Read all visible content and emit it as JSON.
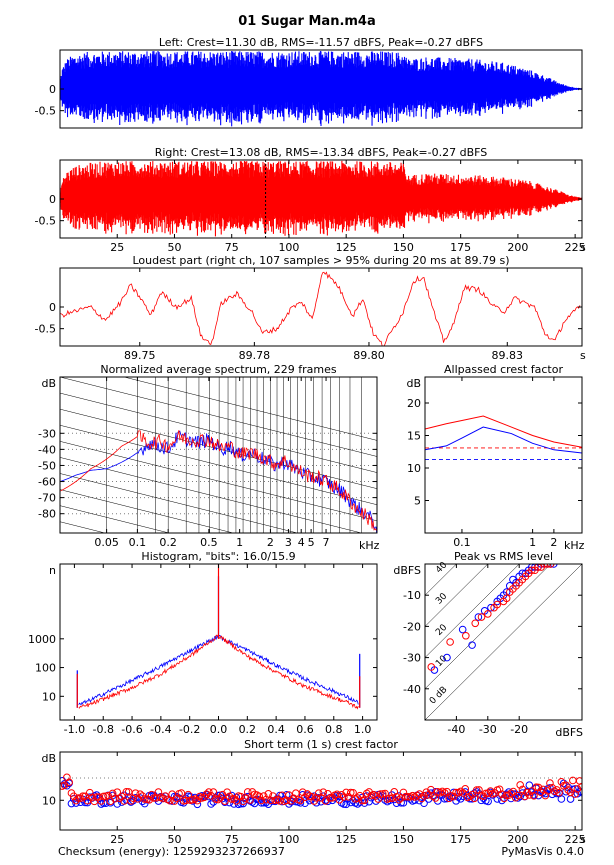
{
  "figure": {
    "title": "01 Sugar Man.m4a",
    "footer_left": "Checksum (energy): 1259293237266937",
    "footer_right": "PyMasVis 0.4.0"
  },
  "colors": {
    "left": "#0000ff",
    "right": "#ff0000",
    "axis": "#000000",
    "grid": "#7f7f7f"
  },
  "chart_data": [
    {
      "id": "left_wave",
      "type": "line",
      "title": "Left: Crest=11.30 dB, RMS=-11.57 dBFS, Peak=-0.27 dBFS",
      "xlim": [
        0,
        228
      ],
      "ylim": [
        -0.9,
        0.9
      ],
      "yticks": [
        "0",
        "-0.5"
      ],
      "ytick_values": [
        0,
        -0.5
      ],
      "envelope_x": [
        0,
        1,
        3,
        6,
        10,
        20,
        40,
        60,
        80,
        100,
        120,
        140,
        150,
        152,
        160,
        170,
        180,
        195,
        205,
        212,
        218,
        222,
        226,
        228
      ],
      "envelope_y": [
        0.2,
        0.5,
        0.7,
        0.8,
        0.85,
        0.88,
        0.88,
        0.88,
        0.88,
        0.88,
        0.88,
        0.88,
        0.85,
        0.7,
        0.75,
        0.72,
        0.7,
        0.6,
        0.45,
        0.3,
        0.15,
        0.07,
        0.03,
        0.02
      ]
    },
    {
      "id": "right_wave",
      "type": "line",
      "title": "Right: Crest=13.08 dB, RMS=-13.34 dBFS, Peak=-0.27 dBFS",
      "xlim": [
        0,
        228
      ],
      "ylim": [
        -0.9,
        0.9
      ],
      "yticks": [
        "0",
        "-0.5"
      ],
      "ytick_values": [
        0,
        -0.5
      ],
      "xticks": [
        "25",
        "50",
        "75",
        "100",
        "125",
        "150",
        "175",
        "200",
        "225"
      ],
      "xtick_values": [
        25,
        50,
        75,
        100,
        125,
        150,
        175,
        200,
        225
      ],
      "xunit": "s",
      "marker_x": 89.79,
      "envelope_x": [
        0,
        1,
        3,
        6,
        10,
        20,
        40,
        60,
        80,
        100,
        120,
        140,
        150,
        152,
        160,
        170,
        180,
        195,
        205,
        212,
        218,
        222,
        226,
        228
      ],
      "envelope_y": [
        0.2,
        0.45,
        0.65,
        0.75,
        0.82,
        0.88,
        0.88,
        0.88,
        0.88,
        0.88,
        0.88,
        0.88,
        0.84,
        0.55,
        0.6,
        0.58,
        0.56,
        0.5,
        0.42,
        0.3,
        0.2,
        0.1,
        0.05,
        0.03
      ]
    },
    {
      "id": "loudest",
      "type": "line",
      "title": "Loudest part (right ch, 107 samples > 95% during 20 ms at 89.79 s)",
      "xlim": [
        89.7368,
        89.8402
      ],
      "ylim": [
        -0.9,
        0.9
      ],
      "yticks": [
        "0",
        "-0.5"
      ],
      "ytick_values": [
        0,
        -0.5
      ],
      "xticks": [
        "89.75",
        "89.78",
        "89.80",
        "89.83"
      ],
      "xtick_values": [
        89.7526,
        89.7753,
        89.798,
        89.8254
      ],
      "xunit": "s",
      "x": [
        0.0,
        0.003,
        0.006,
        0.009,
        0.012,
        0.014,
        0.016,
        0.018,
        0.02,
        0.023,
        0.026,
        0.028,
        0.03,
        0.032,
        0.035,
        0.038,
        0.04,
        0.043,
        0.046,
        0.048,
        0.05,
        0.052,
        0.055,
        0.058,
        0.06,
        0.062,
        0.064,
        0.066,
        0.068,
        0.07,
        0.072,
        0.074,
        0.076,
        0.078,
        0.08,
        0.083,
        0.086,
        0.088,
        0.09,
        0.092,
        0.094,
        0.096,
        0.098,
        0.1,
        0.103
      ],
      "y": [
        -0.2,
        -0.1,
        0.0,
        -0.3,
        0.1,
        0.5,
        0.2,
        -0.2,
        0.35,
        0.0,
        0.2,
        -0.7,
        -0.85,
        0.1,
        0.3,
        -0.1,
        -0.6,
        -0.5,
        0.0,
        0.1,
        -0.3,
        0.85,
        0.5,
        -0.2,
        0.2,
        -0.6,
        -0.9,
        -0.5,
        -0.1,
        0.6,
        0.7,
        -0.1,
        -0.8,
        -0.4,
        0.45,
        0.4,
        0.0,
        -0.1,
        0.2,
        0.1,
        0.0,
        -0.6,
        -0.8,
        -0.3,
        0.0
      ]
    },
    {
      "id": "spectrum",
      "type": "line",
      "title": "Normalized average spectrum, 229 frames",
      "xscale": "log",
      "xlim": [
        0.0175,
        22.05
      ],
      "ylim": [
        -92,
        5
      ],
      "ylabel": "dB",
      "xunit": "kHz",
      "yticks": [
        "-30",
        "-40",
        "-50",
        "-60",
        "-70",
        "-80"
      ],
      "ytick_values": [
        -30,
        -40,
        -50,
        -60,
        -70,
        -80
      ],
      "xticks": [
        "0.05",
        "0.1",
        "0.2",
        "0.5",
        "1",
        "2",
        "3",
        "4",
        "5",
        "7"
      ],
      "xtick_values": [
        0.05,
        0.1,
        0.2,
        0.5,
        1,
        2,
        3,
        4,
        5,
        7
      ],
      "series": [
        {
          "color": "blue",
          "x": [
            0.0175,
            0.025,
            0.035,
            0.05,
            0.07,
            0.1,
            0.13,
            0.17,
            0.2,
            0.25,
            0.32,
            0.4,
            0.5,
            0.65,
            0.8,
            1.0,
            1.3,
            1.7,
            2.2,
            2.8,
            3.5,
            4.5,
            5.5,
            7.0,
            8.5,
            10,
            12,
            14,
            17,
            20,
            22.05
          ],
          "y": [
            -60,
            -56,
            -53,
            -52,
            -48,
            -42,
            -36,
            -38,
            -40,
            -32,
            -34,
            -36,
            -34,
            -40,
            -38,
            -44,
            -42,
            -46,
            -50,
            -48,
            -52,
            -56,
            -58,
            -60,
            -64,
            -66,
            -72,
            -76,
            -80,
            -84,
            -90
          ]
        },
        {
          "color": "red",
          "x": [
            0.0175,
            0.025,
            0.035,
            0.05,
            0.07,
            0.1,
            0.13,
            0.17,
            0.2,
            0.25,
            0.32,
            0.4,
            0.5,
            0.65,
            0.8,
            1.0,
            1.3,
            1.7,
            2.2,
            2.8,
            3.5,
            4.5,
            5.5,
            7.0,
            8.5,
            10,
            12,
            14,
            17,
            20,
            22.05
          ],
          "y": [
            -66,
            -60,
            -52,
            -46,
            -38,
            -32,
            -36,
            -35,
            -38,
            -32,
            -34,
            -34,
            -34,
            -39,
            -38,
            -43,
            -42,
            -45,
            -49,
            -47,
            -52,
            -56,
            -57,
            -60,
            -63,
            -67,
            -72,
            -77,
            -81,
            -86,
            -90
          ]
        }
      ]
    },
    {
      "id": "allpass",
      "type": "line",
      "title": "Allpassed crest factor",
      "xscale": "log",
      "xlim": [
        0.03,
        5
      ],
      "ylim": [
        0,
        24
      ],
      "ylabel": "dB",
      "xunit": "kHz",
      "yticks": [
        "20",
        "15",
        "10",
        "5"
      ],
      "ytick_values": [
        20,
        15,
        10,
        5
      ],
      "xticks": [
        "0.1",
        "1",
        "2"
      ],
      "xtick_values": [
        0.1,
        1,
        2
      ],
      "series": [
        {
          "color": "red",
          "x": [
            0.03,
            0.06,
            0.1,
            0.2,
            0.5,
            1,
            2,
            5
          ],
          "y": [
            16,
            16.8,
            17.3,
            18,
            16.3,
            15,
            14,
            13.2
          ],
          "ref": 13.08
        },
        {
          "color": "blue",
          "x": [
            0.03,
            0.06,
            0.1,
            0.2,
            0.5,
            1,
            2,
            5
          ],
          "y": [
            12.8,
            13.4,
            14.6,
            16.3,
            15.3,
            13.8,
            12.8,
            12.3
          ],
          "ref": 11.3
        }
      ]
    },
    {
      "id": "histogram",
      "type": "line",
      "title": "Histogram, \"bits\": 16.0/15.9",
      "ylabel": "n",
      "yscale": "log",
      "xlim": [
        -1.1,
        1.1
      ],
      "ylim": [
        1.5,
        400000
      ],
      "yticks": [
        "1000",
        "100",
        "10"
      ],
      "ytick_values": [
        1000,
        100,
        10
      ],
      "xticks": [
        "-1.0",
        "-0.8",
        "-0.6",
        "-0.4",
        "-0.2",
        "0.0",
        "0.2",
        "0.4",
        "0.6",
        "0.8",
        "1.0"
      ],
      "xtick_values": [
        -1.0,
        -0.8,
        -0.6,
        -0.4,
        -0.2,
        0.0,
        0.2,
        0.4,
        0.6,
        0.8,
        1.0
      ],
      "series": [
        {
          "color": "blue",
          "x": [
            -0.97,
            -0.9,
            -0.8,
            -0.6,
            -0.4,
            -0.2,
            0.0,
            0.2,
            0.4,
            0.6,
            0.8,
            0.9,
            0.97
          ],
          "y": [
            5,
            7,
            12,
            35,
            110,
            380,
            1200,
            400,
            120,
            40,
            15,
            9,
            6
          ],
          "peak_y": 150000,
          "edge_y": [
            80,
            300
          ]
        },
        {
          "color": "red",
          "x": [
            -0.97,
            -0.9,
            -0.8,
            -0.6,
            -0.4,
            -0.2,
            0.0,
            0.2,
            0.4,
            0.6,
            0.8,
            0.9,
            0.97
          ],
          "y": [
            4,
            5,
            8,
            20,
            60,
            250,
            1300,
            250,
            70,
            22,
            9,
            6,
            4
          ],
          "peak_y": 400000,
          "edge_y": [
            60,
            50
          ]
        }
      ]
    },
    {
      "id": "peak_rms",
      "type": "scatter",
      "title": "Peak vs RMS level",
      "xlim": [
        -50,
        0
      ],
      "ylim": [
        -50,
        0
      ],
      "ylabel": "dBFS",
      "xlabel": "dBFS",
      "yticks": [
        "-10",
        "-20",
        "-30",
        "-40"
      ],
      "ytick_values": [
        -10,
        -20,
        -30,
        -40
      ],
      "xticks": [
        "-40",
        "-30",
        "-20"
      ],
      "xtick_values": [
        -40,
        -30,
        -20
      ],
      "diagonal_labels": [
        "0 dB",
        "10",
        "20",
        "30",
        "40"
      ],
      "series": [
        {
          "color": "blue",
          "x": [
            -47,
            -43,
            -38,
            -35,
            -33,
            -31,
            -29,
            -27,
            -26,
            -25,
            -24,
            -23,
            -22,
            -21,
            -20,
            -19,
            -18,
            -17,
            -16,
            -15,
            -14,
            -13,
            -12,
            -11,
            -10,
            -9
          ],
          "y": [
            -34,
            -30,
            -21,
            -26,
            -17,
            -15,
            -14,
            -12,
            -11,
            -10,
            -9,
            -7,
            -5,
            -6,
            -4,
            -3,
            -3,
            -2,
            -1,
            -1,
            -1,
            0,
            0,
            0,
            0,
            0
          ]
        },
        {
          "color": "red",
          "x": [
            -48,
            -42,
            -37,
            -34,
            -32,
            -30,
            -28,
            -27,
            -25,
            -24,
            -23,
            -22,
            -21,
            -20,
            -19,
            -18,
            -17,
            -16,
            -15,
            -14,
            -13,
            -12,
            -11,
            -10
          ],
          "y": [
            -33,
            -25,
            -23,
            -19,
            -17,
            -16,
            -14,
            -13,
            -12,
            -11,
            -9,
            -8,
            -7,
            -6,
            -5,
            -4,
            -3,
            -2,
            -2,
            -1,
            -1,
            0,
            0,
            0
          ]
        }
      ]
    },
    {
      "id": "short_term",
      "type": "scatter",
      "title": "Short term (1 s) crest factor",
      "ylabel": "dB",
      "xlim": [
        0,
        228
      ],
      "ylim": [
        2,
        23
      ],
      "yticks": [
        "10"
      ],
      "ytick_values": [
        10
      ],
      "xticks": [
        "25",
        "50",
        "75",
        "100",
        "125",
        "150",
        "175",
        "200",
        "225"
      ],
      "xtick_values": [
        25,
        50,
        75,
        100,
        125,
        150,
        175,
        200,
        225
      ],
      "xunit": "s",
      "grid_y": 16,
      "series": [
        {
          "color": "blue",
          "base": 10.2
        },
        {
          "color": "red",
          "base": 11.0
        }
      ]
    }
  ]
}
